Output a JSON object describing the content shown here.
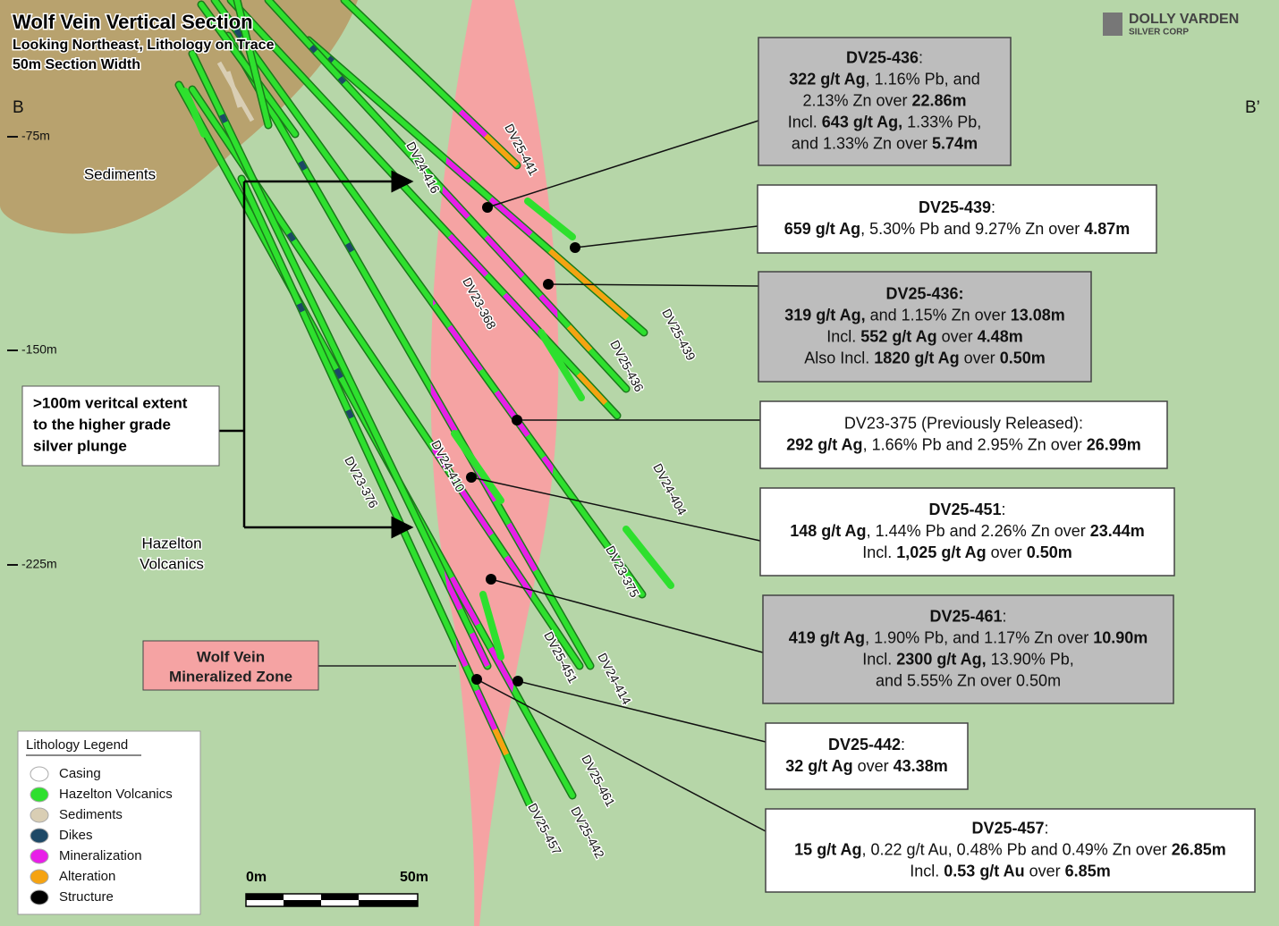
{
  "header": {
    "title": "Wolf Vein Vertical Section",
    "subtitle_lines": [
      "Looking Northeast, Lithology on Trace",
      "50m Section Width"
    ],
    "section_start": "B",
    "section_end": "B’"
  },
  "logo": {
    "name": "DOLLY VARDEN",
    "tagline": "SILVER CORP"
  },
  "depth_labels": [
    "-75m",
    "-150m",
    "-225m"
  ],
  "unit_labels": {
    "sediments": "Sediments",
    "volcanics": [
      "Hazelton",
      "Volcanics"
    ]
  },
  "extent_note": [
    ">100m veritcal extent",
    "to the higher grade",
    "silver plunge"
  ],
  "zone_label": [
    "Wolf Vein",
    "Mineralized Zone"
  ],
  "drill_holes": [
    "DV25-441",
    "DV24-416",
    "DV23-368",
    "DV25-439",
    "DV25-436",
    "DV24-404",
    "DV23-375",
    "DV24-410",
    "DV23-376",
    "DV25-451",
    "DV24-414",
    "DV25-461",
    "DV25-457",
    "DV25-442"
  ],
  "callouts": [
    {
      "shaded": true,
      "lines": [
        [
          {
            "text": "DV25-436",
            "bold": true
          },
          {
            "text": ":",
            "bold": false
          }
        ],
        [
          {
            "text": "322 g/t Ag",
            "bold": true
          },
          {
            "text": ", 1.16% Pb, and",
            "bold": false
          }
        ],
        [
          {
            "text": "2.13% Zn over ",
            "bold": false
          },
          {
            "text": "22.86m",
            "bold": true
          }
        ],
        [
          {
            "text": "Incl. ",
            "bold": false
          },
          {
            "text": "643 g/t Ag,",
            "bold": true
          },
          {
            "text": " 1.33% Pb,",
            "bold": false
          }
        ],
        [
          {
            "text": "and 1.33% Zn over ",
            "bold": false
          },
          {
            "text": "5.74m",
            "bold": true
          }
        ]
      ]
    },
    {
      "shaded": false,
      "lines": [
        [
          {
            "text": "DV25-439",
            "bold": true
          },
          {
            "text": ":",
            "bold": false
          }
        ],
        [
          {
            "text": "659 g/t Ag",
            "bold": true
          },
          {
            "text": ", 5.30% Pb and 9.27% Zn over ",
            "bold": false
          },
          {
            "text": "4.87m",
            "bold": true
          }
        ]
      ]
    },
    {
      "shaded": true,
      "lines": [
        [
          {
            "text": "DV25-436:",
            "bold": true
          }
        ],
        [
          {
            "text": "319 g/t Ag,",
            "bold": true
          },
          {
            "text": " and 1.15% Zn over ",
            "bold": false
          },
          {
            "text": "13.08m",
            "bold": true
          }
        ],
        [
          {
            "text": "Incl. ",
            "bold": false
          },
          {
            "text": "552 g/t Ag",
            "bold": true
          },
          {
            "text": " over ",
            "bold": false
          },
          {
            "text": "4.48m",
            "bold": true
          }
        ],
        [
          {
            "text": "Also Incl. ",
            "bold": false
          },
          {
            "text": "1820 g/t Ag",
            "bold": true
          },
          {
            "text": " over ",
            "bold": false
          },
          {
            "text": "0.50m",
            "bold": true
          }
        ]
      ]
    },
    {
      "shaded": false,
      "lines": [
        [
          {
            "text": "DV23-375 (Previously Released):",
            "bold": false
          }
        ],
        [
          {
            "text": "292 g/t Ag",
            "bold": true
          },
          {
            "text": ", 1.66% Pb and 2.95% Zn over ",
            "bold": false
          },
          {
            "text": "26.99m",
            "bold": true
          }
        ]
      ]
    },
    {
      "shaded": false,
      "lines": [
        [
          {
            "text": "DV25-451",
            "bold": true
          },
          {
            "text": ":",
            "bold": false
          }
        ],
        [
          {
            "text": "148 g/t Ag",
            "bold": true
          },
          {
            "text": ", 1.44% Pb and 2.26% Zn over ",
            "bold": false
          },
          {
            "text": "23.44m",
            "bold": true
          }
        ],
        [
          {
            "text": "Incl. ",
            "bold": false
          },
          {
            "text": "1,025 g/t Ag",
            "bold": true
          },
          {
            "text": " over ",
            "bold": false
          },
          {
            "text": "0.50m",
            "bold": true
          }
        ]
      ]
    },
    {
      "shaded": true,
      "lines": [
        [
          {
            "text": "DV25-461",
            "bold": true
          },
          {
            "text": ":",
            "bold": false
          }
        ],
        [
          {
            "text": "419 g/t Ag",
            "bold": true
          },
          {
            "text": ", 1.90% Pb, and 1.17% Zn over ",
            "bold": false
          },
          {
            "text": "10.90m",
            "bold": true
          }
        ],
        [
          {
            "text": "Incl. ",
            "bold": false
          },
          {
            "text": "2300 g/t Ag,",
            "bold": true
          },
          {
            "text": " 13.90% Pb,",
            "bold": false
          }
        ],
        [
          {
            "text": "and 5.55% Zn over 0.50m",
            "bold": false
          }
        ]
      ]
    },
    {
      "shaded": false,
      "lines": [
        [
          {
            "text": "DV25-442",
            "bold": true
          },
          {
            "text": ":",
            "bold": false
          }
        ],
        [
          {
            "text": "32 g/t Ag",
            "bold": true
          },
          {
            "text": " over ",
            "bold": false
          },
          {
            "text": "43.38m",
            "bold": true
          }
        ]
      ]
    },
    {
      "shaded": false,
      "lines": [
        [
          {
            "text": "DV25-457",
            "bold": true
          },
          {
            "text": ":",
            "bold": false
          }
        ],
        [
          {
            "text": "15 g/t Ag",
            "bold": true
          },
          {
            "text": ", 0.22 g/t Au, 0.48% Pb and 0.49% Zn over ",
            "bold": false
          },
          {
            "text": "26.85m",
            "bold": true
          }
        ],
        [
          {
            "text": "Incl. ",
            "bold": false
          },
          {
            "text": "0.53 g/t Au",
            "bold": true
          },
          {
            "text": " over ",
            "bold": false
          },
          {
            "text": "6.85m",
            "bold": true
          }
        ]
      ]
    }
  ],
  "legend": {
    "title": "Lithology Legend",
    "items": [
      {
        "name": "Casing",
        "color": "#ffffff"
      },
      {
        "name": "Hazelton Volcanics",
        "color": "#2ee02e"
      },
      {
        "name": "Sediments",
        "color": "#d9ceb4"
      },
      {
        "name": "Dikes",
        "color": "#1d4866"
      },
      {
        "name": "Mineralization",
        "color": "#e81ee8"
      },
      {
        "name": "Alteration",
        "color": "#f5a312"
      },
      {
        "name": "Structure",
        "color": "#000000"
      }
    ]
  },
  "scale_bar": {
    "start": "0m",
    "end": "50m"
  }
}
